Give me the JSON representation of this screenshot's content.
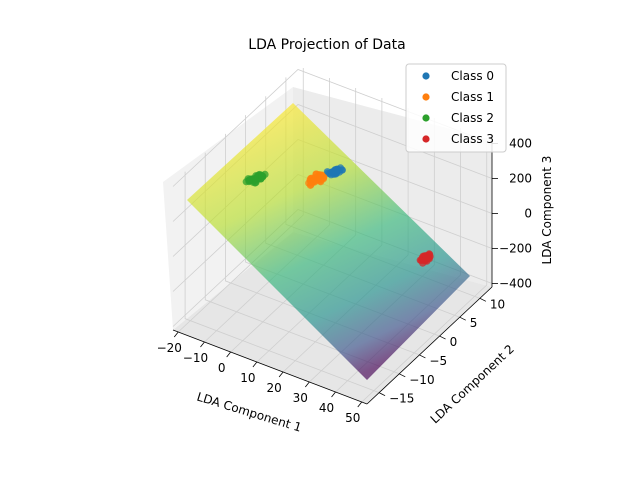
{
  "chart_data": {
    "type": "scatter",
    "title": "LDA Projection of Data",
    "xlabel": "LDA Component 1",
    "ylabel": "LDA Component 2",
    "zlabel": "LDA Component 3",
    "x_ticks": [
      "−20",
      "−10",
      "0",
      "10",
      "20",
      "30",
      "40",
      "50"
    ],
    "y_ticks": [
      "−15",
      "−10",
      "−5",
      "0",
      "5",
      "10"
    ],
    "z_ticks": [
      "−400",
      "−200",
      "0",
      "200",
      "400"
    ],
    "xlim": [
      -22,
      52
    ],
    "ylim": [
      -18,
      13
    ],
    "zlim": [
      -420,
      420
    ],
    "grid": true,
    "legend_position": "top-right",
    "series": [
      {
        "name": "Class 0",
        "color": "#1f77b4",
        "center": [
          9,
          2,
          230
        ],
        "count": 40
      },
      {
        "name": "Class 1",
        "color": "#ff7f0e",
        "center": [
          2,
          2,
          150
        ],
        "count": 40
      },
      {
        "name": "Class 2",
        "color": "#2ca02c",
        "center": [
          -18,
          0,
          80
        ],
        "count": 40
      },
      {
        "name": "Class 3",
        "color": "#d62728",
        "center": [
          50,
          -2,
          60
        ],
        "count": 30
      }
    ],
    "decision_surface": {
      "colormap": "viridis",
      "alpha": 0.5
    }
  }
}
